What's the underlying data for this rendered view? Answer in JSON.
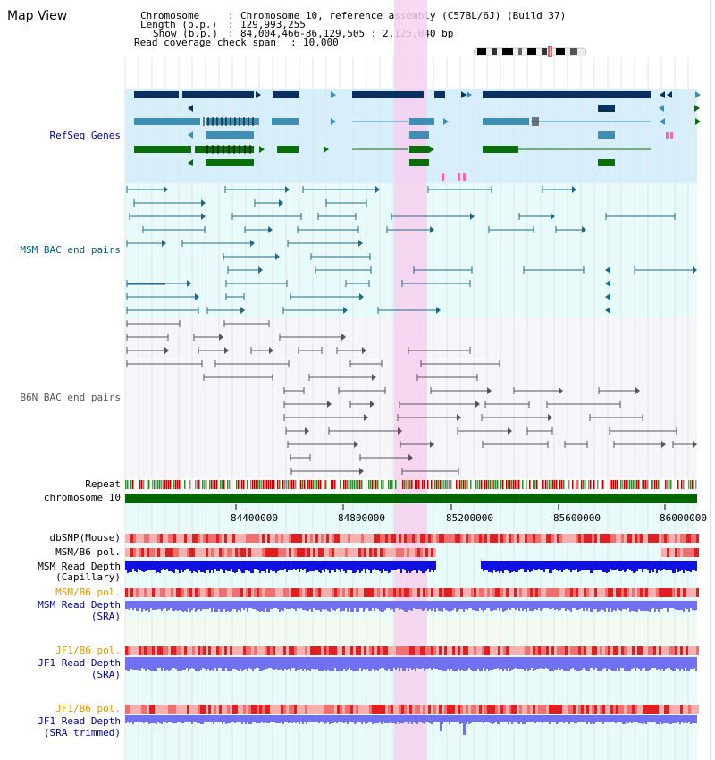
{
  "page_title": "Map View",
  "header": {
    "chromosome_label": "Chromosome",
    "chromosome_value": "Chromosome 10, reference assembly (C57BL/6J) (Build 37)",
    "length_label": "Length (b.p.)",
    "length_value": "129,993,255",
    "show_label": "Show (b.p.)",
    "show_value": "84,004,466-86,129,505 : 2,125,040 bp",
    "coverage_label": "Read coverage check span",
    "coverage_value": "10,000"
  },
  "tracks": {
    "refseq": "RefSeq Genes",
    "msm_bac": "MSM BAC end pairs",
    "b6n_bac": "B6N BAC end pairs",
    "repeat": "Repeat",
    "chromosome": "chromosome 10",
    "dbsnp": "dbSNP(Mouse)",
    "msm_b6_pol_1": "MSM/B6 pol.",
    "msm_read_depth_cap_1": "MSM Read Depth",
    "msm_read_depth_cap_2": "(Capillary)",
    "msm_b6_pol_2": "MSM/B6 pol.",
    "msm_read_depth_sra_1": "MSM Read Depth",
    "msm_read_depth_sra_2": "(SRA)",
    "jf1_b6_pol_1": "JF1/B6 pol.",
    "jf1_read_depth_sra_1": "JF1 Read Depth",
    "jf1_read_depth_sra_2": "(SRA)",
    "jf1_b6_pol_2": "JF1/B6 pol.",
    "jf1_read_depth_trim_1": "JF1 Read Depth",
    "jf1_read_depth_trim_2": "(SRA trimmed)"
  },
  "axis": {
    "ticks": [
      "84400000",
      "84800000",
      "85200000",
      "85600000",
      "86000000"
    ]
  },
  "colors": {
    "refseq_bg": "#d6effa",
    "msm_bg": "#e8fafa",
    "b6n_bg": "#f6f6fa",
    "highlight": "#f7d0f0",
    "refseq_dark": "#0a3060",
    "refseq_mid": "#3f8fb5",
    "refseq_green": "#0a6e0a",
    "chrom_green": "#006600",
    "depth_dark": "#1010e0",
    "depth_light": "#7070f0",
    "pol_red": "#e03030"
  }
}
